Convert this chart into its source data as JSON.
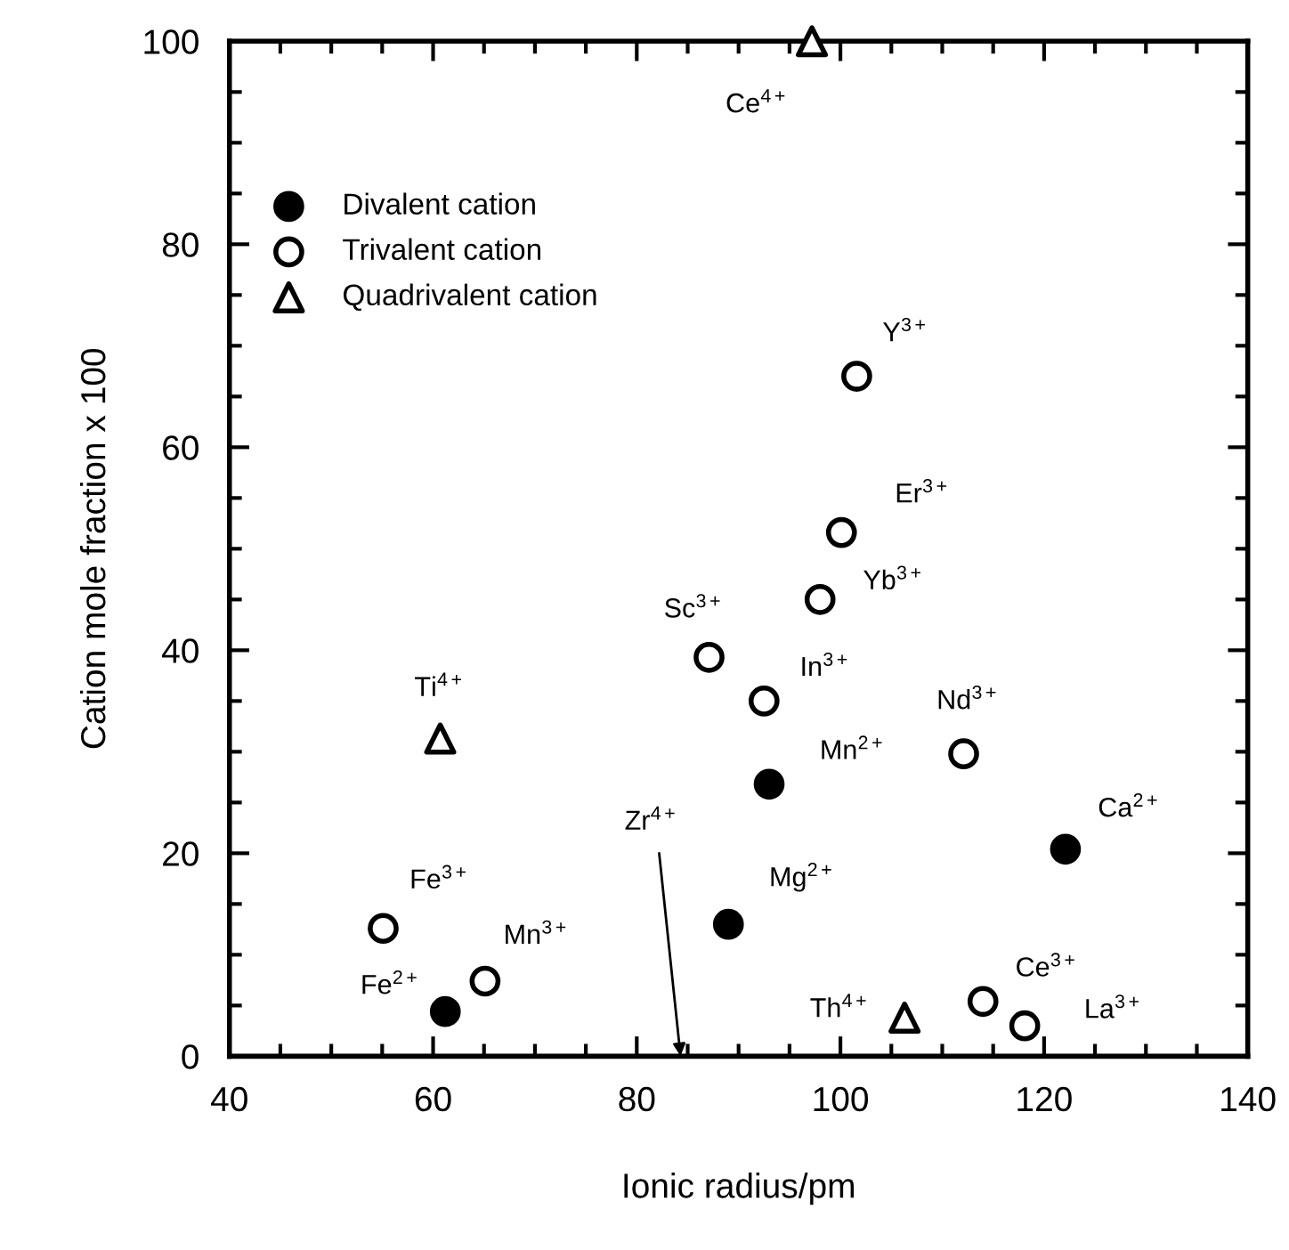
{
  "chart_data": {
    "type": "scatter",
    "xlabel": "Ionic radius/pm",
    "ylabel": "Cation mole fraction x 100",
    "xlim": [
      40,
      140
    ],
    "xticks": [
      40,
      60,
      80,
      100,
      120,
      140
    ],
    "ylim": [
      0,
      100
    ],
    "yticks": [
      0,
      20,
      40,
      60,
      80,
      100
    ],
    "grid": false,
    "legend": "top left",
    "series": [
      {
        "name": "Divalent cation",
        "color": "#000000",
        "marker": "circle",
        "x": [
          61.2,
          93.0,
          89.0,
          122.1
        ],
        "values": [
          4.4,
          26.8,
          13.0,
          20.4
        ]
      },
      {
        "name": "Trivalent cation",
        "color": "#ffffff",
        "marker": "circle",
        "x": [
          65.1,
          55.1,
          87.1,
          92.5,
          112.1,
          114.0,
          118.1,
          101.6,
          100.1,
          98.0
        ],
        "values": [
          7.4,
          12.6,
          39.3,
          35.0,
          29.8,
          5.4,
          3.0,
          67.0,
          51.6,
          45.0
        ]
      },
      {
        "name": "Quadrivalent cation",
        "color": "#ffffff",
        "marker": "triangle",
        "x": [
          60.7,
          106.3,
          97.2
        ],
        "values": [
          31.3,
          3.8,
          100
        ]
      }
    ],
    "annotations": [
      {
        "text": "Fe$^{2+}$",
        "x": 61.2,
        "y": 4.4
      },
      {
        "text": "Mn$^{2+}$",
        "x": 93.0,
        "y": 26.8
      },
      {
        "text": "Mg$^{2+}$",
        "x": 89.0,
        "y": 13.0
      },
      {
        "text": "Ca$^{2+}$",
        "x": 122.1,
        "y": 20.4
      },
      {
        "text": "Mn$^{3+}$",
        "x": 65.1,
        "y": 7.4
      },
      {
        "text": "Fe$^{3+}$",
        "x": 55.1,
        "y": 12.6
      },
      {
        "text": "Sc$^{3+}$",
        "x": 87.1,
        "y": 39.3
      },
      {
        "text": "In$^{3+}$",
        "x": 92.5,
        "y": 35.0
      },
      {
        "text": "Nd$^{3+}$",
        "x": 112.1,
        "y": 29.8
      },
      {
        "text": "Ce$^{3+}$",
        "x": 114.0,
        "y": 5.4
      },
      {
        "text": "La$^{3+}$",
        "x": 118.1,
        "y": 3.0
      },
      {
        "text": "Y$^{3+}$",
        "x": 101.6,
        "y": 67.0
      },
      {
        "text": "Er$^{3+}$",
        "x": 100.1,
        "y": 51.6
      },
      {
        "text": "Yb$^{3+}$",
        "x": 98.0,
        "y": 45.0
      },
      {
        "text": "Ti$^{4+}$",
        "x": 60.7,
        "y": 31.3
      },
      {
        "text": "Th$^{4+}$",
        "x": 106.3,
        "y": 3.8
      },
      {
        "text": "Ce$^{4+}$",
        "x": 97.2,
        "y": 100
      },
      "Zr$^{4+}$"
    ]
  }
}
